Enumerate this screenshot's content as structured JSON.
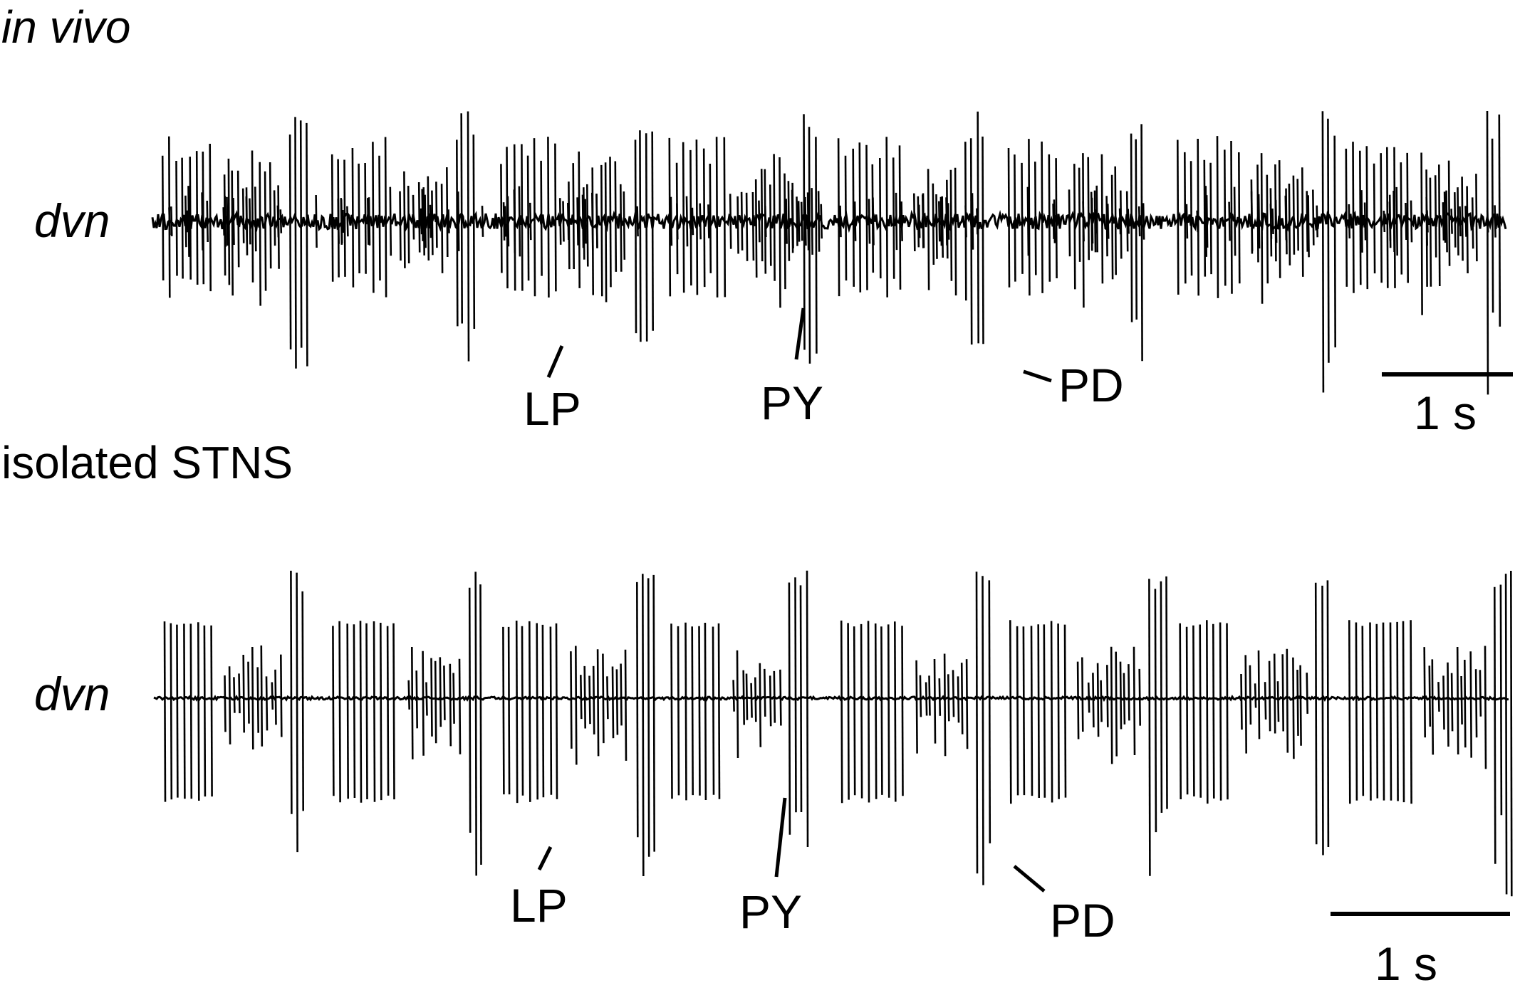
{
  "panels": [
    {
      "id": "in_vivo",
      "title": "in vivo",
      "title_italic": true,
      "trace_label": "dvn",
      "trace": {
        "bursts": 8,
        "background_noise": "high",
        "seed": 7
      },
      "annotations": [
        "LP",
        "PY",
        "PD"
      ],
      "scale_bar_label": "1 s"
    },
    {
      "id": "isolated_stns",
      "title": "isolated STNS",
      "title_italic": false,
      "trace_label": "dvn",
      "trace": {
        "bursts": 8,
        "background_noise": "low",
        "seed": 13
      },
      "annotations": [
        "LP",
        "PY",
        "PD"
      ],
      "scale_bar_label": "1 s"
    }
  ],
  "colors": {
    "trace": "#000000",
    "background": "#ffffff"
  }
}
